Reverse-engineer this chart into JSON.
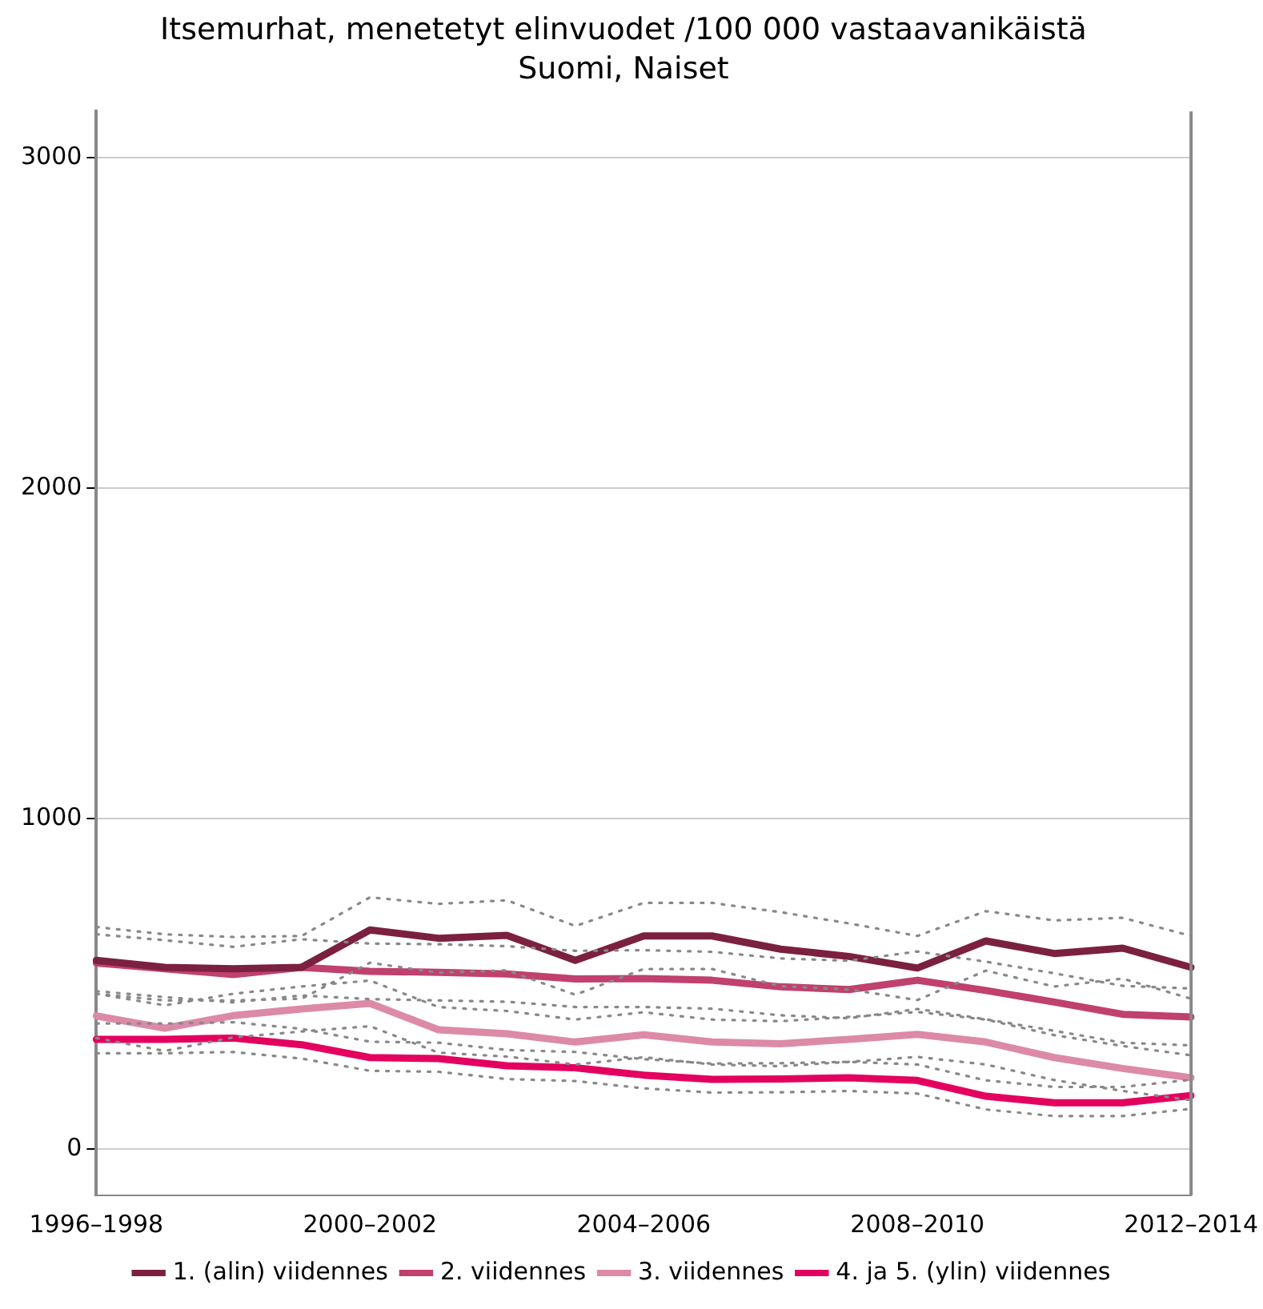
{
  "chart_data": {
    "type": "line",
    "title": "Itsemurhat, menetetyt elinvuodet /100 000 vastaavanikäistä",
    "subtitle": "Suomi, Naiset",
    "categories": [
      "1996–1998",
      null,
      null,
      null,
      "2000–2002",
      null,
      null,
      null,
      "2004–2006",
      null,
      null,
      null,
      "2008–2010",
      null,
      null,
      null,
      "2012–2014"
    ],
    "ylim": [
      -140,
      3140
    ],
    "yticks": [
      0,
      1000,
      2000,
      3000
    ],
    "grid": "y",
    "legend": "bottom",
    "marker": "none",
    "line_style": "solid",
    "series": [
      {
        "color": "#888888",
        "line_style": "dotted",
        "values": [
          672,
          650,
          642,
          645,
          762,
          742,
          753,
          675,
          745,
          745,
          717,
          683,
          645,
          720,
          692,
          700,
          645
        ]
      },
      {
        "color": "#888888",
        "line_style": "dotted",
        "values": [
          470,
          450,
          450,
          455,
          564,
          534,
          541,
          467,
          545,
          545,
          493,
          483,
          451,
          540,
          492,
          516,
          455
        ]
      },
      {
        "color": "#888888",
        "line_style": "dotted",
        "values": [
          650,
          632,
          612,
          635,
          622,
          620,
          614,
          600,
          602,
          597,
          577,
          570,
          598,
          567,
          532,
          494,
          486
        ]
      },
      {
        "color": "#888888",
        "line_style": "dotted",
        "values": [
          478,
          460,
          444,
          465,
          454,
          450,
          446,
          430,
          430,
          425,
          405,
          396,
          424,
          393,
          358,
          322,
          314
        ]
      },
      {
        "color": "#888888",
        "line_style": "dotted",
        "values": [
          470,
          435,
          470,
          492,
          510,
          430,
          418,
          392,
          414,
          392,
          387,
          400,
          415,
          392,
          345,
          312,
          284
        ]
      },
      {
        "color": "#888888",
        "line_style": "dotted",
        "values": [
          336,
          297,
          338,
          356,
          372,
          292,
          280,
          256,
          278,
          256,
          251,
          264,
          279,
          256,
          209,
          176,
          148
        ]
      },
      {
        "color": "#888888",
        "line_style": "dotted",
        "values": [
          380,
          380,
          384,
          364,
          325,
          322,
          300,
          294,
          272,
          259,
          260,
          264,
          256,
          208,
          188,
          188,
          210
        ]
      },
      {
        "color": "#888888",
        "line_style": "dotted",
        "values": [
          290,
          290,
          294,
          274,
          237,
          234,
          212,
          206,
          184,
          171,
          172,
          176,
          168,
          120,
          100,
          100,
          122
        ]
      },
      {
        "name": "1. (alin) viidennes",
        "color": "#7b2040",
        "values": [
          571,
          550,
          546,
          550,
          663,
          638,
          647,
          571,
          645,
          645,
          605,
          583,
          548,
          630,
          592,
          608,
          550
        ]
      },
      {
        "name": "2. viidennes",
        "color": "#c0406e",
        "values": [
          563,
          546,
          528,
          550,
          538,
          535,
          530,
          515,
          516,
          511,
          491,
          483,
          511,
          480,
          445,
          408,
          400
        ]
      },
      {
        "name": "3. viidennes",
        "color": "#dc8aa8",
        "values": [
          403,
          366,
          404,
          424,
          441,
          361,
          349,
          324,
          346,
          324,
          319,
          332,
          347,
          324,
          277,
          244,
          216
        ]
      },
      {
        "name": "4. ja 5. (ylin) viidennes",
        "color": "#e3005f",
        "values": [
          332,
          332,
          336,
          316,
          277,
          274,
          252,
          246,
          224,
          211,
          212,
          216,
          208,
          160,
          140,
          140,
          162
        ]
      }
    ]
  }
}
